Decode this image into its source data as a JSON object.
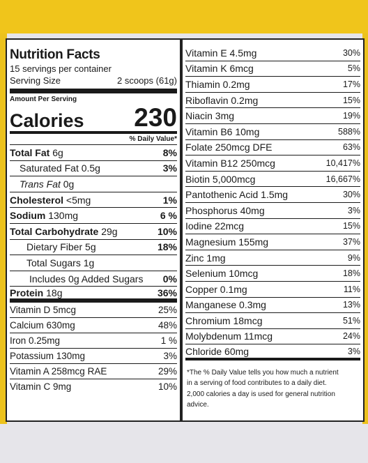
{
  "header": {
    "title": "Nutrition Facts",
    "servings": "15 servings per container",
    "serving_size_label": "Serving Size",
    "serving_size_value": "2 scoops (61g)",
    "amount_per_serving": "Amount Per Serving",
    "calories_label": "Calories",
    "calories_value": "230",
    "daily_value_header": "% Daily Value*"
  },
  "nutrients": [
    {
      "name": "Total Fat",
      "amount": "6g",
      "pct": "8%"
    },
    {
      "name": "Saturated Fat",
      "amount": "0.5g",
      "pct": "3%"
    },
    {
      "name": "Trans Fat",
      "amount": "0g",
      "pct": ""
    },
    {
      "name": "Cholesterol",
      "amount": "<5mg",
      "pct": "1%"
    },
    {
      "name": "Sodium",
      "amount": "130mg",
      "pct": "6 %"
    },
    {
      "name": "Total Carbohydrate",
      "amount": "29g",
      "pct": "10%"
    },
    {
      "name": "Dietary Fiber",
      "amount": "5g",
      "pct": "18%"
    },
    {
      "name": "Total Sugars",
      "amount": "1g",
      "pct": ""
    },
    {
      "name": "Includes 0g Added Sugars",
      "amount": "",
      "pct": "0%"
    },
    {
      "name": "Protein",
      "amount": "18g",
      "pct": "36%"
    }
  ],
  "vitamins_left": [
    {
      "text": "Vitamin D 5mcg",
      "pct": "25%"
    },
    {
      "text": "Calcium 630mg",
      "pct": "48%"
    },
    {
      "text": "Iron 0.25mg",
      "pct": "1 %"
    },
    {
      "text": "Potassium 130mg",
      "pct": "3%"
    },
    {
      "text": "Vitamin A 258mcg RAE",
      "pct": "29%"
    },
    {
      "text": "Vitamin C 9mg",
      "pct": "10%"
    }
  ],
  "vitamins_right": [
    {
      "text": "Vitamin E 4.5mg",
      "pct": "30%"
    },
    {
      "text": "Vitamin K 6mcg",
      "pct": "5%"
    },
    {
      "text": "Thiamin 0.2mg",
      "pct": "17%"
    },
    {
      "text": "Riboflavin 0.2mg",
      "pct": "15%"
    },
    {
      "text": "Niacin 3mg",
      "pct": "19%"
    },
    {
      "text": "Vitamin B6 10mg",
      "pct": "588%"
    },
    {
      "text": "Folate 250mcg DFE",
      "pct": "63%"
    },
    {
      "text": "Vitamin B12 250mcg",
      "pct": "10,417%"
    },
    {
      "text": "Biotin 5,000mcg",
      "pct": "16,667%"
    },
    {
      "text": "Pantothenic Acid 1.5mg",
      "pct": "30%"
    },
    {
      "text": "Phosphorus 40mg",
      "pct": "3%"
    },
    {
      "text": "Iodine 22mcg",
      "pct": "15%"
    },
    {
      "text": "Magnesium 155mg",
      "pct": "37%"
    },
    {
      "text": "Zinc 1mg",
      "pct": "9%"
    },
    {
      "text": "Selenium 10mcg",
      "pct": "18%"
    },
    {
      "text": "Copper 0.1mg",
      "pct": "11%"
    },
    {
      "text": "Manganese 0.3mg",
      "pct": "13%"
    },
    {
      "text": "Chromium 18mcg",
      "pct": "51%"
    },
    {
      "text": "Molybdenum 11mcg",
      "pct": "24%"
    },
    {
      "text": "Chloride 60mg",
      "pct": "3%"
    }
  ],
  "footnote": [
    "*The % Daily Value tells you how much a nutrient",
    "in a serving of food contributes to a daily diet.",
    "2,000 calories a day is used for general nutrition",
    "advice."
  ]
}
